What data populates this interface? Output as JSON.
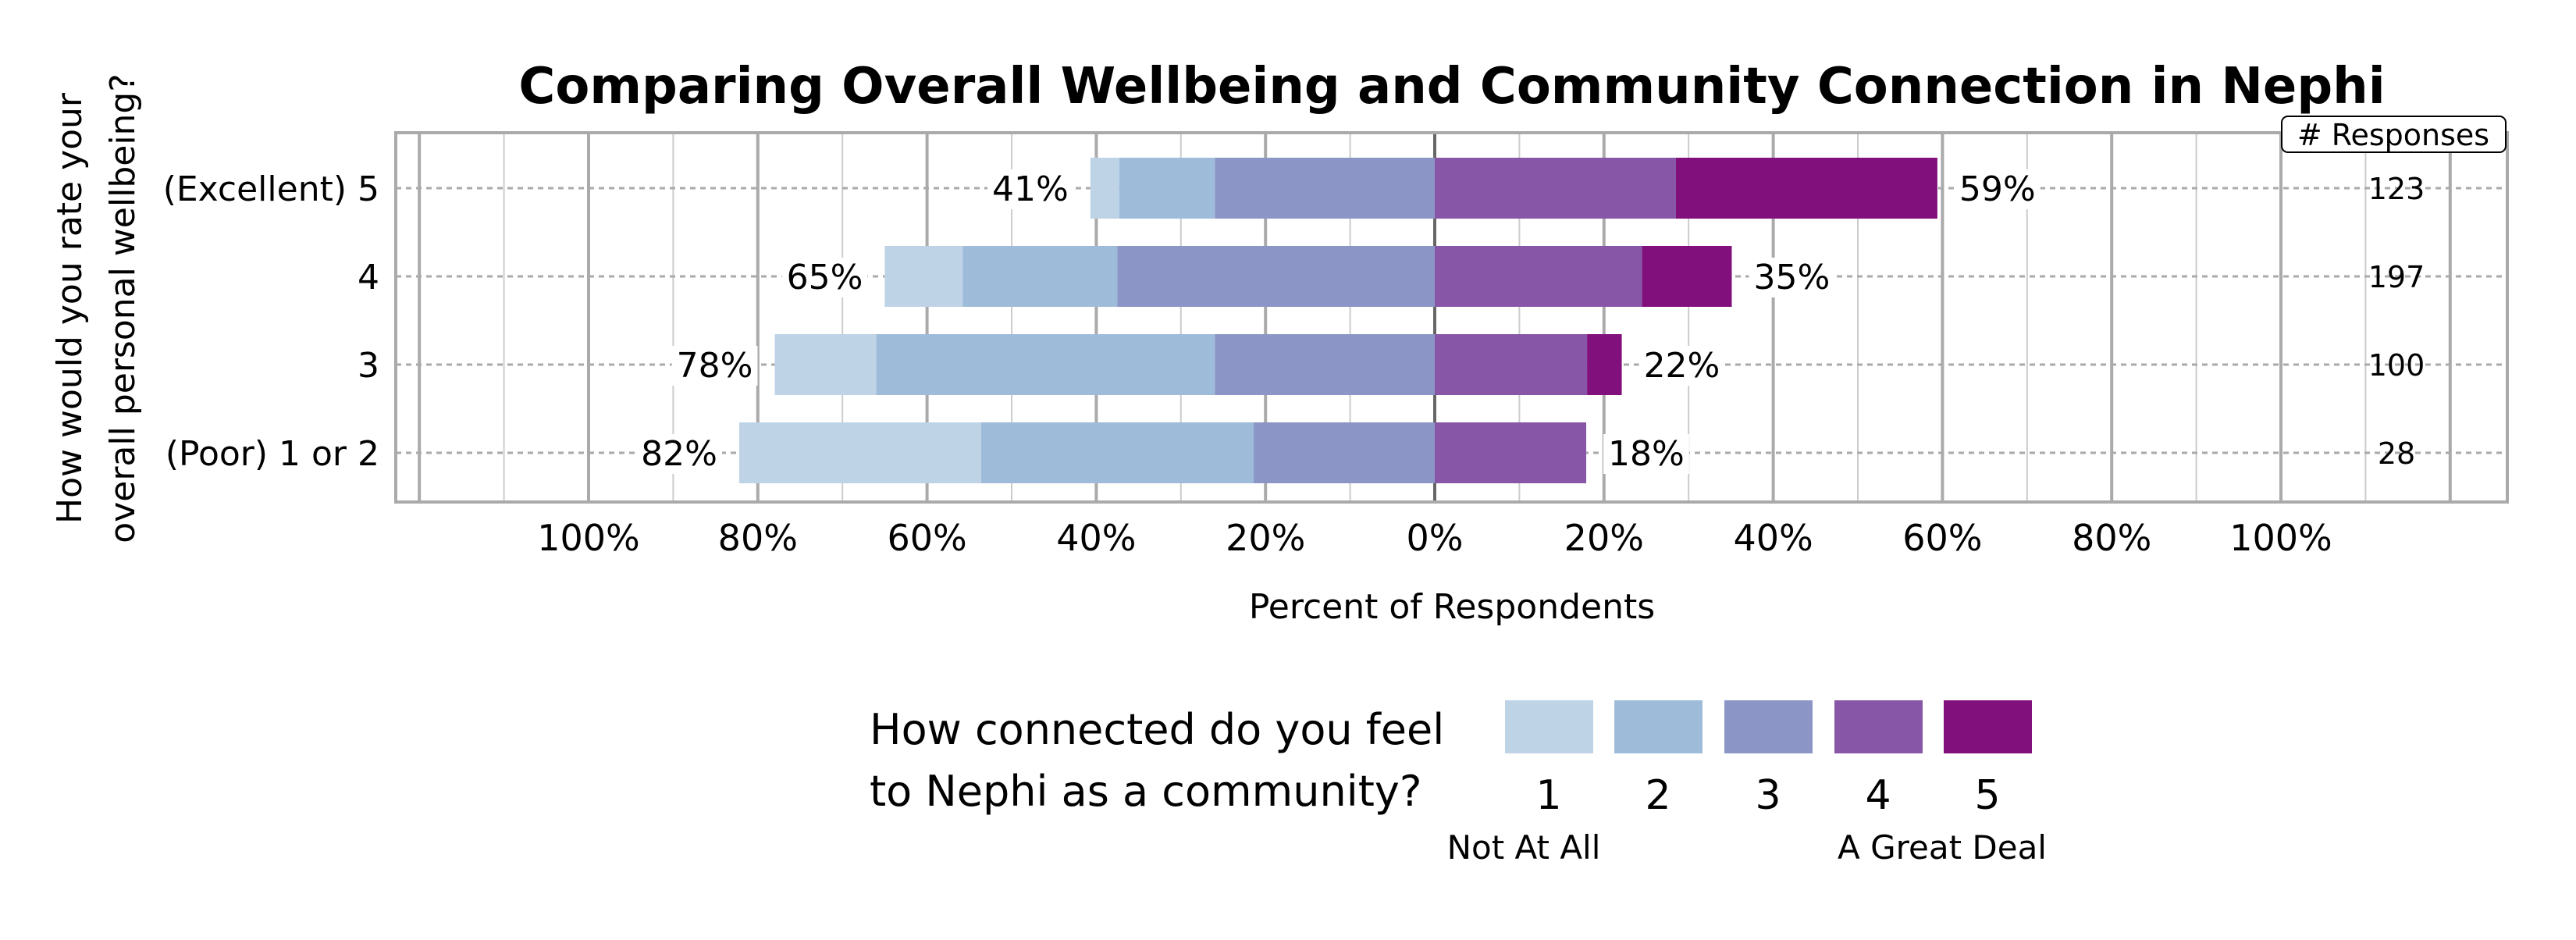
{
  "chart_data": {
    "type": "bar",
    "orientation": "horizontal",
    "stacked": "diverging",
    "title": "Comparing Overall Wellbeing and Community Connection in Nephi",
    "xlabel": "Percent of Respondents",
    "ylabel": "How would you rate your overall personal wellbeing?",
    "ylabel_lines": [
      "How would you rate your",
      "overall personal wellbeing?"
    ],
    "xticks": [
      "100%",
      "80%",
      "60%",
      "40%",
      "20%",
      "0%",
      "20%",
      "40%",
      "60%",
      "80%",
      "100%"
    ],
    "xtick_values": [
      -100,
      -80,
      -60,
      -40,
      -20,
      0,
      20,
      40,
      60,
      80,
      100
    ],
    "xlim": [
      -123,
      127
    ],
    "grid": true,
    "categories": [
      "(Excellent) 5",
      "4",
      "3",
      "(Poor) 1 or 2"
    ],
    "series": [
      {
        "name": "1",
        "side": "left",
        "color": "#bfd3e6",
        "values": [
          3.4,
          9.2,
          12.0,
          28.6
        ]
      },
      {
        "name": "2",
        "side": "left",
        "color": "#9ebcda",
        "values": [
          11.3,
          18.3,
          40.0,
          32.2
        ]
      },
      {
        "name": "3",
        "side": "left",
        "color": "#8c96c6",
        "values": [
          26.0,
          37.5,
          26.0,
          21.4
        ]
      },
      {
        "name": "4",
        "side": "right",
        "color": "#8856a7",
        "values": [
          28.5,
          24.5,
          18.0,
          17.9
        ]
      },
      {
        "name": "5",
        "side": "right",
        "color": "#810f7c",
        "values": [
          30.9,
          10.6,
          4.1,
          0
        ]
      }
    ],
    "left_labels": [
      "41%",
      "65%",
      "78%",
      "82%"
    ],
    "right_labels": [
      "59%",
      "35%",
      "22%",
      "18%"
    ],
    "responses_header": "# Responses",
    "responses": [
      "123",
      "197",
      "100",
      "28"
    ],
    "legend": {
      "title_lines": [
        "How connected do you feel",
        "to Nephi as a community?"
      ],
      "items": [
        "1",
        "2",
        "3",
        "4",
        "5"
      ],
      "low_label": "Not At All",
      "high_label": "A Great Deal",
      "placement": "bottom"
    }
  }
}
